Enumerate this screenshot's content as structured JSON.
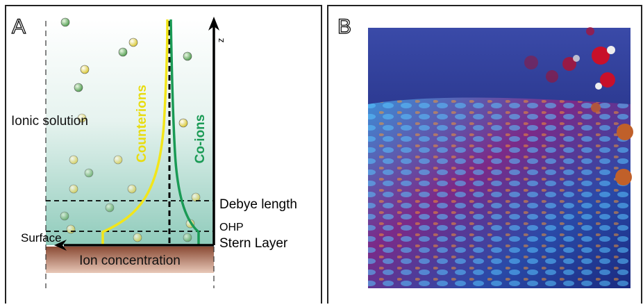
{
  "panel_a": {
    "label": "A",
    "axis_label": "z",
    "region_label": "Ionic solution",
    "curves": {
      "counterions": "Counterions",
      "co_ions": "Co-ions"
    },
    "levels": {
      "debye": "Debye length",
      "ohp": "OHP",
      "stern": "Stern Layer"
    },
    "surface": "Surface",
    "x_axis_label": "Ion concentration"
  },
  "panel_b": {
    "label": "B"
  }
}
